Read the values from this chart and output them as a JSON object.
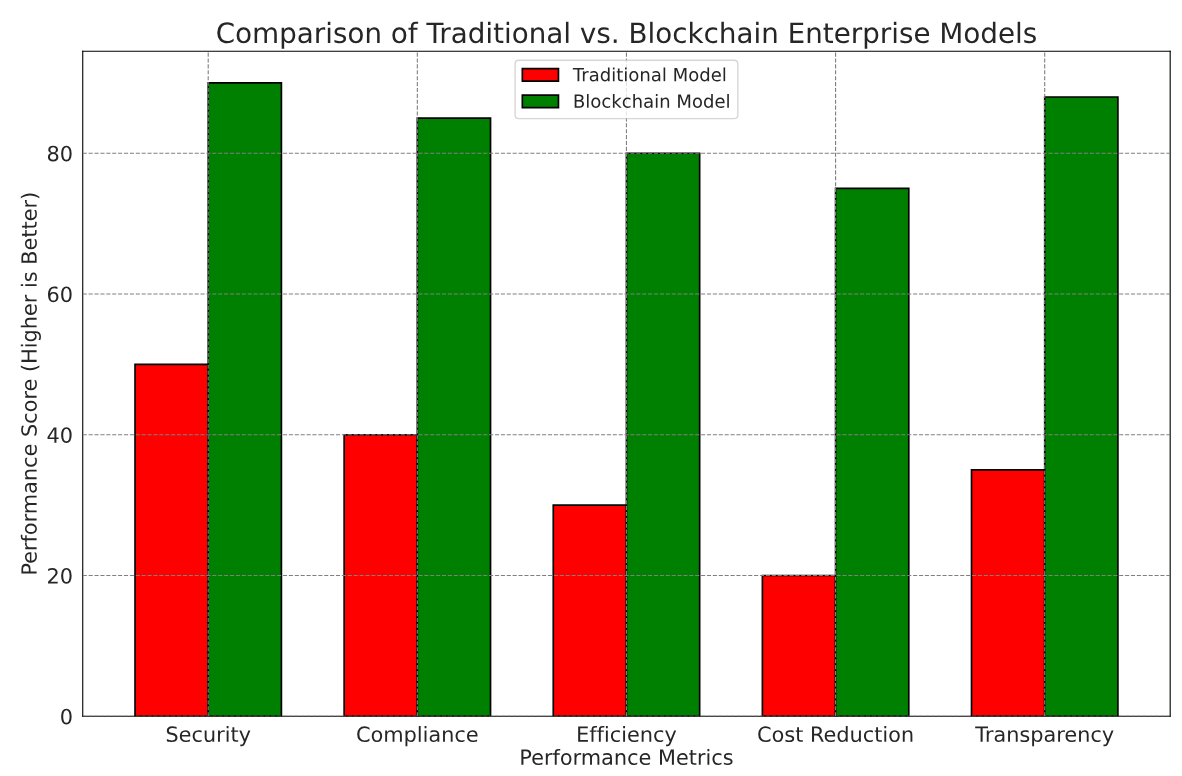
{
  "chart_data": {
    "type": "bar",
    "title": "Comparison of Traditional vs. Blockchain Enterprise Models",
    "xlabel": "Performance Metrics",
    "ylabel": "Performance Score (Higher is Better)",
    "categories": [
      "Security",
      "Compliance",
      "Efficiency",
      "Cost Reduction",
      "Transparency"
    ],
    "series": [
      {
        "name": "Traditional Model",
        "color": "#ff0000",
        "values": [
          50,
          40,
          30,
          20,
          35
        ]
      },
      {
        "name": "Blockchain Model",
        "color": "#008000",
        "values": [
          90,
          85,
          80,
          75,
          88
        ]
      }
    ],
    "ylim": [
      0,
      94.5
    ],
    "yticks": [
      0,
      20,
      40,
      60,
      80
    ],
    "grid": true,
    "legend": "top"
  }
}
